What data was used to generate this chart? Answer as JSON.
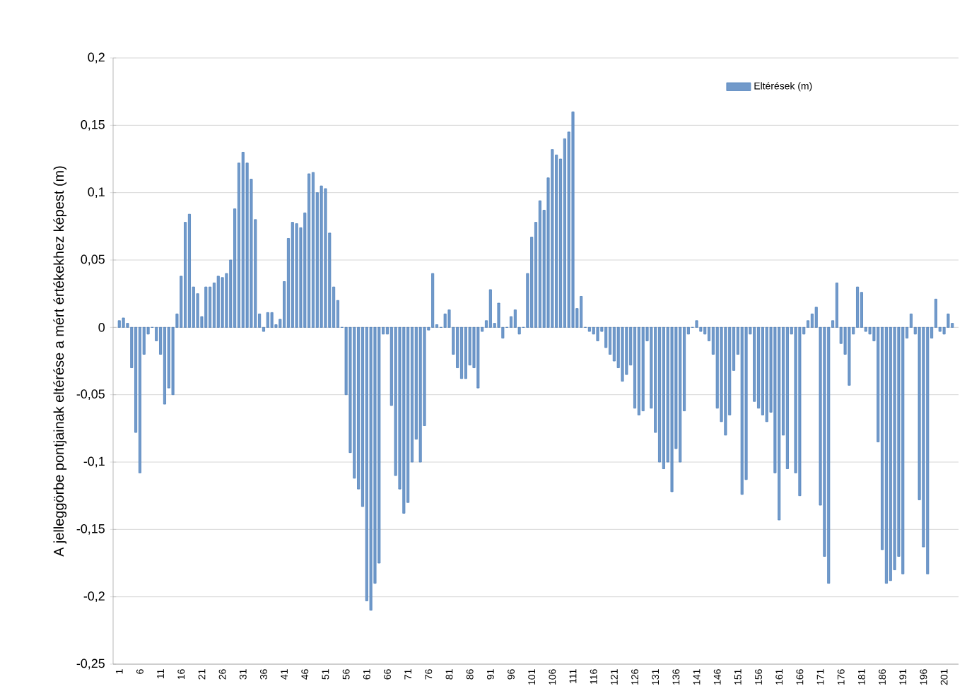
{
  "chart_data": {
    "type": "bar",
    "ylabel": "A jelleggörbe pontjainak eltérése a mért értékekhez képest (m)",
    "categories": [
      "1",
      null,
      null,
      null,
      null,
      "6",
      null,
      null,
      null,
      null,
      "11",
      null,
      null,
      null,
      null,
      "16",
      null,
      null,
      null,
      null,
      "21",
      null,
      null,
      null,
      null,
      "26",
      null,
      null,
      null,
      null,
      "31",
      null,
      null,
      null,
      null,
      "36",
      null,
      null,
      null,
      null,
      "41",
      null,
      null,
      null,
      null,
      "46",
      null,
      null,
      null,
      null,
      "51",
      null,
      null,
      null,
      null,
      "56",
      null,
      null,
      null,
      null,
      "61",
      null,
      null,
      null,
      null,
      "66",
      null,
      null,
      null,
      null,
      "71",
      null,
      null,
      null,
      null,
      "76",
      null,
      null,
      null,
      null,
      "81",
      null,
      null,
      null,
      null,
      "86",
      null,
      null,
      null,
      null,
      "91",
      null,
      null,
      null,
      null,
      "96",
      null,
      null,
      null,
      null,
      "101",
      null,
      null,
      null,
      null,
      "106",
      null,
      null,
      null,
      null,
      "111",
      null,
      null,
      null,
      null,
      "116",
      null,
      null,
      null,
      null,
      "121",
      null,
      null,
      null,
      null,
      "126",
      null,
      null,
      null,
      null,
      "131",
      null,
      null,
      null,
      null,
      "136",
      null,
      null,
      null,
      null,
      "141",
      null,
      null,
      null,
      null,
      "146",
      null,
      null,
      null,
      null,
      "151",
      null,
      null,
      null,
      null,
      "156",
      null,
      null,
      null,
      null,
      "161",
      null,
      null,
      null,
      null,
      "166",
      null,
      null,
      null,
      null,
      "171",
      null,
      null,
      null,
      null,
      "176",
      null,
      null,
      null,
      null,
      "181",
      null,
      null,
      null,
      null,
      "186",
      null,
      null,
      null,
      null,
      "191",
      null,
      null,
      null,
      null,
      "196",
      null,
      null,
      null,
      null,
      "201",
      null,
      null
    ],
    "series": [
      {
        "name": "Eltérések (m)",
        "color": "#4f81bd",
        "values": [
          0.005,
          0.007,
          0.003,
          -0.03,
          -0.078,
          -0.108,
          -0.02,
          -0.005,
          0.0,
          -0.01,
          -0.02,
          -0.057,
          -0.045,
          -0.05,
          0.01,
          0.038,
          0.078,
          0.084,
          0.03,
          0.025,
          0.008,
          0.03,
          0.03,
          0.033,
          0.038,
          0.037,
          0.04,
          0.05,
          0.088,
          0.122,
          0.13,
          0.122,
          0.11,
          0.08,
          0.01,
          -0.003,
          0.011,
          0.011,
          0.002,
          0.006,
          0.034,
          0.066,
          0.078,
          0.077,
          0.074,
          0.085,
          0.114,
          0.115,
          0.1,
          0.105,
          0.103,
          0.07,
          0.03,
          0.02,
          0.0,
          -0.05,
          -0.093,
          -0.112,
          -0.12,
          -0.133,
          -0.203,
          -0.21,
          -0.19,
          -0.175,
          -0.005,
          -0.005,
          -0.058,
          -0.11,
          -0.12,
          -0.138,
          -0.13,
          -0.1,
          -0.083,
          -0.1,
          -0.073,
          -0.002,
          0.04,
          0.002,
          0.0,
          0.01,
          0.013,
          -0.02,
          -0.03,
          -0.038,
          -0.038,
          -0.028,
          -0.03,
          -0.045,
          -0.003,
          0.005,
          0.028,
          0.003,
          0.018,
          -0.008,
          0.0,
          0.008,
          0.013,
          -0.005,
          0.0,
          0.04,
          0.067,
          0.078,
          0.094,
          0.087,
          0.111,
          0.132,
          0.128,
          0.125,
          0.14,
          0.145,
          0.16,
          0.014,
          0.023,
          0.0,
          -0.003,
          -0.005,
          -0.01,
          -0.003,
          -0.015,
          -0.02,
          -0.025,
          -0.03,
          -0.04,
          -0.035,
          -0.028,
          -0.06,
          -0.065,
          -0.062,
          -0.01,
          -0.06,
          -0.078,
          -0.1,
          -0.105,
          -0.1,
          -0.122,
          -0.09,
          -0.1,
          -0.062,
          -0.005,
          0.0,
          0.005,
          -0.003,
          -0.005,
          -0.01,
          -0.02,
          -0.06,
          -0.07,
          -0.08,
          -0.065,
          -0.032,
          -0.02,
          -0.124,
          -0.113,
          -0.005,
          -0.055,
          -0.06,
          -0.065,
          -0.07,
          -0.063,
          -0.108,
          -0.143,
          -0.08,
          -0.105,
          -0.005,
          -0.108,
          -0.125,
          -0.005,
          0.005,
          0.01,
          0.015,
          -0.132,
          -0.17,
          -0.19,
          0.005,
          0.033,
          -0.012,
          -0.02,
          -0.043,
          -0.005,
          0.03,
          0.026,
          -0.003,
          -0.005,
          -0.01,
          -0.085,
          -0.165,
          -0.19,
          -0.188,
          -0.18,
          -0.17,
          -0.183,
          -0.008,
          0.01,
          -0.005,
          -0.128,
          -0.163,
          -0.183,
          -0.008,
          0.021,
          -0.003,
          -0.005,
          0.01,
          0.003
        ]
      }
    ],
    "ylim": [
      -0.25,
      0.2
    ],
    "yticks": [
      {
        "value": -0.25,
        "label": "-0,25"
      },
      {
        "value": -0.2,
        "label": "-0,2"
      },
      {
        "value": -0.15,
        "label": "-0,15"
      },
      {
        "value": -0.1,
        "label": "-0,1"
      },
      {
        "value": -0.05,
        "label": "-0,05"
      },
      {
        "value": 0,
        "label": "0"
      },
      {
        "value": 0.05,
        "label": "0,05"
      },
      {
        "value": 0.1,
        "label": "0,1"
      },
      {
        "value": 0.15,
        "label": "0,15"
      },
      {
        "value": 0.2,
        "label": "0,2"
      }
    ],
    "grid": "y",
    "legend": "top right"
  }
}
